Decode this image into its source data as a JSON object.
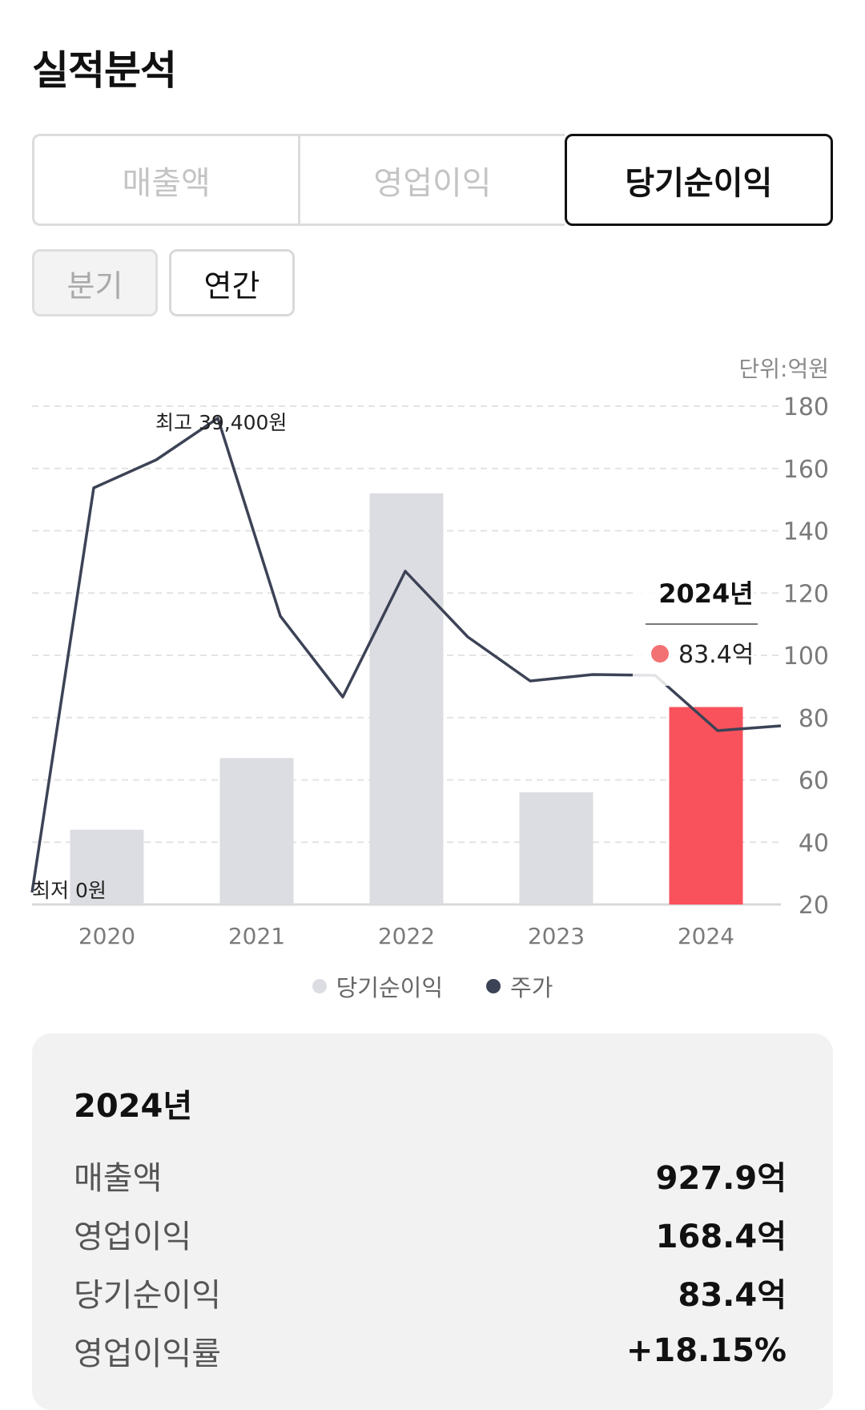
{
  "page_title": "실적분석",
  "metric_tabs": [
    {
      "label": "매출액",
      "active": false
    },
    {
      "label": "영업이익",
      "active": false
    },
    {
      "label": "당기순이익",
      "active": true
    }
  ],
  "period_tabs": [
    {
      "label": "분기",
      "active": false
    },
    {
      "label": "연간",
      "active": true
    }
  ],
  "colors": {
    "bar": "#dcdde2",
    "bar_highlight": "#f9525c",
    "line": "#3d4356",
    "tooltip_dot": "#f27172",
    "grid": "#e3e3e3"
  },
  "chart_data": {
    "type": "bar",
    "unit_label": "단위:억원",
    "categories": [
      "2020",
      "2021",
      "2022",
      "2023",
      "2024"
    ],
    "series": [
      {
        "name": "당기순이익",
        "type": "bar",
        "values": [
          44,
          67,
          152,
          56,
          83.4
        ]
      },
      {
        "name": "주가",
        "type": "line"
      }
    ],
    "highlight_index": 4,
    "y_ticks": [
      180,
      160,
      140,
      120,
      100,
      80,
      60,
      40,
      20
    ],
    "ylim": [
      20,
      180
    ],
    "grid": true,
    "annotations": {
      "max_label": "최고 39,400원",
      "min_label": "최저 0원"
    },
    "tooltip": {
      "title": "2024년",
      "value_label": "83.4억"
    }
  },
  "legend": [
    {
      "label": "당기순이익",
      "color": "#dcdde2"
    },
    {
      "label": "주가",
      "color": "#3d4356"
    }
  ],
  "summary": {
    "year": "2024년",
    "rows": [
      {
        "label": "매출액",
        "value": "927.9억"
      },
      {
        "label": "영업이익",
        "value": "168.4억"
      },
      {
        "label": "당기순이익",
        "value": "83.4억"
      },
      {
        "label": "영업이익률",
        "value": "+18.15%"
      }
    ]
  }
}
